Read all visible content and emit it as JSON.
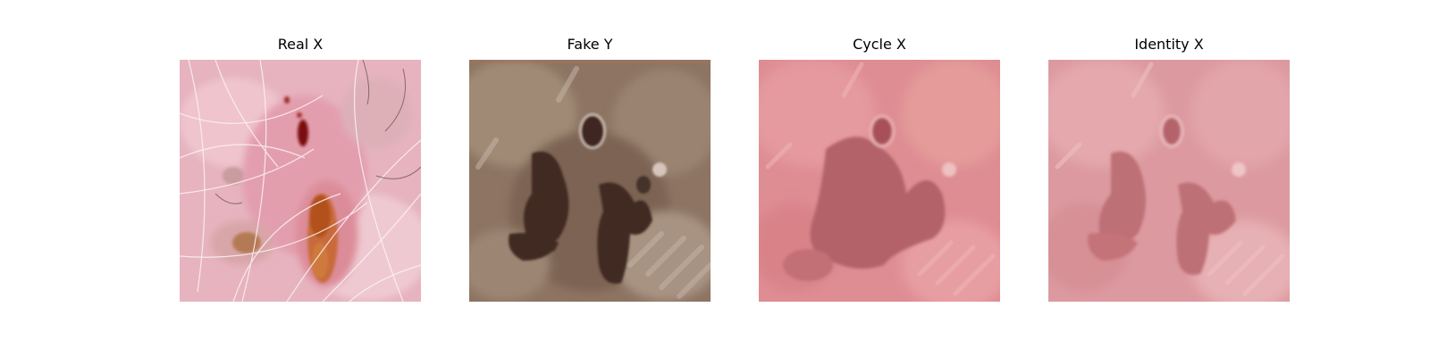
{
  "panels": [
    {
      "title": "Real X"
    },
    {
      "title": "Fake Y"
    },
    {
      "title": "Cycle X"
    },
    {
      "title": "Identity X"
    }
  ]
}
